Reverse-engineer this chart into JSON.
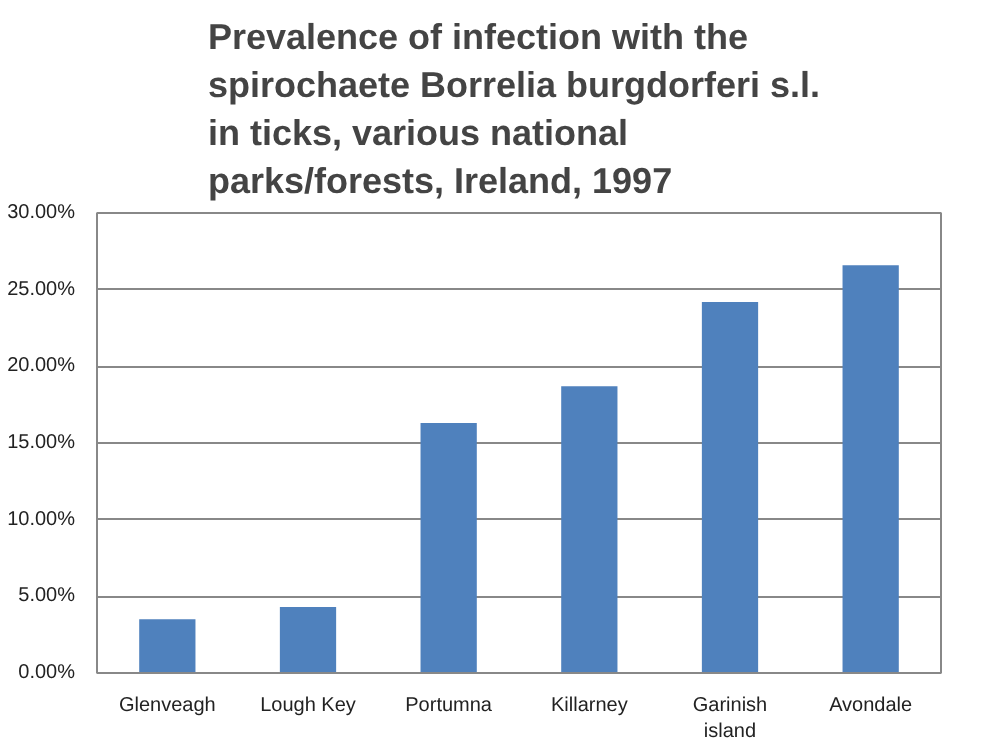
{
  "chart_data": {
    "type": "bar",
    "title": "Prevalence of infection with the spirochaete Borrelia burgdorferi  s.l. in ticks, various national parks/forests, Ireland, 1997",
    "categories": [
      "Glenveagh",
      "Lough Key",
      "Portumna",
      "Killarney",
      "Garinish island",
      "Avondale"
    ],
    "values": [
      3.5,
      4.3,
      16.3,
      18.7,
      24.2,
      26.6
    ],
    "color": "#4f81bd",
    "ylim": [
      0,
      30
    ],
    "yticks": [
      {
        "value": 0,
        "label": "0.00%"
      },
      {
        "value": 5,
        "label": "5.00%"
      },
      {
        "value": 10,
        "label": "10.00%"
      },
      {
        "value": 15,
        "label": "15.00%"
      },
      {
        "value": 20,
        "label": "20.00%"
      },
      {
        "value": 25,
        "label": "25.00%"
      },
      {
        "value": 30,
        "label": "30.00%"
      }
    ],
    "grid": "y"
  }
}
